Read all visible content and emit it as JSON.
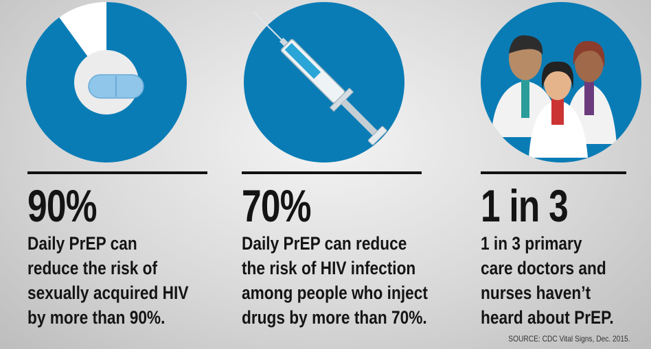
{
  "panels": [
    {
      "stat": "90%",
      "value": 90,
      "lines": [
        "Daily PrEP can",
        "reduce the risk of",
        "sexually acquired HIV",
        "by more than 90%."
      ]
    },
    {
      "stat": "70%",
      "lines": [
        "Daily PrEP can reduce",
        "the risk of HIV infection",
        "among people who inject",
        "drugs by more than 70%."
      ]
    },
    {
      "stat": "1 in 3",
      "lines": [
        "1 in 3 primary",
        "care doctors and",
        "nurses haven’t",
        "heard about PrEP."
      ]
    }
  ],
  "source": "SOURCE: CDC Vital Signs, Dec. 2015."
}
